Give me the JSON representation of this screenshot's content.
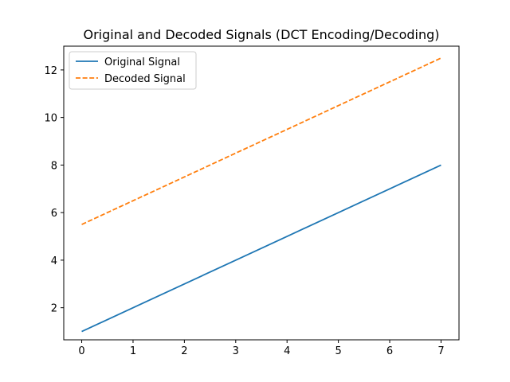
{
  "chart_data": {
    "type": "line",
    "title": "Original and Decoded Signals (DCT Encoding/Decoding)",
    "xlabel": "",
    "ylabel": "",
    "x": [
      0,
      1,
      2,
      3,
      4,
      5,
      6,
      7
    ],
    "xlim": [
      -0.35,
      7.35
    ],
    "ylim": [
      0.65,
      13.0
    ],
    "xticks": [
      0,
      1,
      2,
      3,
      4,
      5,
      6,
      7
    ],
    "yticks": [
      2,
      4,
      6,
      8,
      10,
      12
    ],
    "grid": false,
    "legend_position": "top-left",
    "series": [
      {
        "name": "Original Signal",
        "values": [
          1,
          2,
          3,
          4,
          5,
          6,
          7,
          8
        ],
        "color": "#1f77b4",
        "style": "solid"
      },
      {
        "name": "Decoded Signal",
        "values": [
          5.5,
          6.5,
          7.5,
          8.5,
          9.5,
          10.5,
          11.5,
          12.5
        ],
        "color": "#ff7f0e",
        "style": "dashed"
      }
    ]
  }
}
